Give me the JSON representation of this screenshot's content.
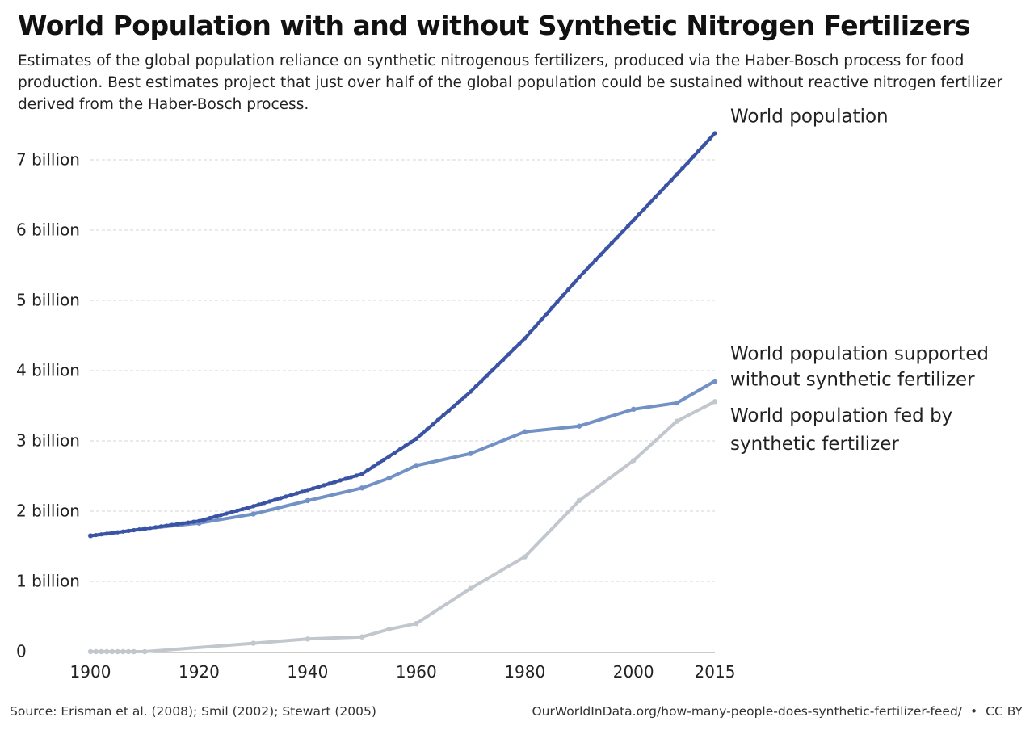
{
  "header": {
    "title": "World Population with and without Synthetic Nitrogen Fertilizers",
    "subtitle": "Estimates of the global population reliance on synthetic nitrogenous fertilizers, produced via the Haber-Bosch process for food production. Best estimates project that just over half of the global population could be sustained without reactive nitrogen fertilizer derived from the Haber-Bosch process."
  },
  "footer": {
    "source": "Source: Erisman et al. (2008); Smil (2002); Stewart (2005)",
    "url": "OurWorldInData.org/how-many-people-does-synthetic-fertilizer-feed/",
    "separator": "•",
    "license": "CC BY"
  },
  "chart_data": {
    "type": "line",
    "title": "World Population with and without Synthetic Nitrogen Fertilizers",
    "xlabel": "",
    "ylabel": "",
    "xlim": [
      1900,
      2015
    ],
    "ylim": [
      0,
      7000000000
    ],
    "grid": "horizontal dashed",
    "legend": "inline labels at right end of lines",
    "x_ticks": [
      {
        "value": 1900,
        "label": "1900"
      },
      {
        "value": 1920,
        "label": "1920"
      },
      {
        "value": 1940,
        "label": "1940"
      },
      {
        "value": 1960,
        "label": "1960"
      },
      {
        "value": 1980,
        "label": "1980"
      },
      {
        "value": 2000,
        "label": "2000"
      },
      {
        "value": 2015,
        "label": "2015"
      }
    ],
    "y_ticks": [
      {
        "value": 0,
        "label": "0"
      },
      {
        "value": 1000000000,
        "label": "1 billion"
      },
      {
        "value": 2000000000,
        "label": "2 billion"
      },
      {
        "value": 3000000000,
        "label": "3 billion"
      },
      {
        "value": 4000000000,
        "label": "4 billion"
      },
      {
        "value": 5000000000,
        "label": "5 billion"
      },
      {
        "value": 6000000000,
        "label": "6 billion"
      },
      {
        "value": 7000000000,
        "label": "7 billion"
      }
    ],
    "series": [
      {
        "name": "World population",
        "label_lines": [
          "World population"
        ],
        "color": "#3b53a4",
        "dense_markers": true,
        "points": [
          [
            1900,
            1650000000
          ],
          [
            1910,
            1750000000
          ],
          [
            1920,
            1860000000
          ],
          [
            1930,
            2070000000
          ],
          [
            1940,
            2300000000
          ],
          [
            1950,
            2530000000
          ],
          [
            1960,
            3030000000
          ],
          [
            1970,
            3700000000
          ],
          [
            1980,
            4460000000
          ],
          [
            1990,
            5330000000
          ],
          [
            2000,
            6140000000
          ],
          [
            2010,
            6960000000
          ],
          [
            2015,
            7380000000
          ]
        ]
      },
      {
        "name": "World population supported without synthetic fertilizer",
        "label_lines": [
          "World population supported",
          "without synthetic fertilizer"
        ],
        "color": "#7291c5",
        "dense_markers": false,
        "points": [
          [
            1900,
            1650000000
          ],
          [
            1910,
            1750000000
          ],
          [
            1920,
            1830000000
          ],
          [
            1930,
            1960000000
          ],
          [
            1940,
            2150000000
          ],
          [
            1950,
            2330000000
          ],
          [
            1955,
            2470000000
          ],
          [
            1960,
            2650000000
          ],
          [
            1970,
            2820000000
          ],
          [
            1980,
            3130000000
          ],
          [
            1990,
            3210000000
          ],
          [
            2000,
            3450000000
          ],
          [
            2008,
            3540000000
          ],
          [
            2015,
            3850000000
          ]
        ]
      },
      {
        "name": "World population fed by synthetic fertilizer",
        "label_lines": [
          "World population fed by",
          "synthetic fertilizer"
        ],
        "color": "#c2c7ce",
        "dense_markers": false,
        "points": [
          [
            1900,
            0
          ],
          [
            1901,
            0
          ],
          [
            1902,
            0
          ],
          [
            1903,
            0
          ],
          [
            1904,
            0
          ],
          [
            1905,
            0
          ],
          [
            1906,
            0
          ],
          [
            1907,
            0
          ],
          [
            1908,
            0
          ],
          [
            1910,
            0
          ],
          [
            1930,
            120000000
          ],
          [
            1940,
            180000000
          ],
          [
            1950,
            210000000
          ],
          [
            1955,
            320000000
          ],
          [
            1960,
            400000000
          ],
          [
            1970,
            900000000
          ],
          [
            1980,
            1350000000
          ],
          [
            1990,
            2150000000
          ],
          [
            2000,
            2720000000
          ],
          [
            2008,
            3280000000
          ],
          [
            2015,
            3560000000
          ]
        ]
      }
    ]
  }
}
